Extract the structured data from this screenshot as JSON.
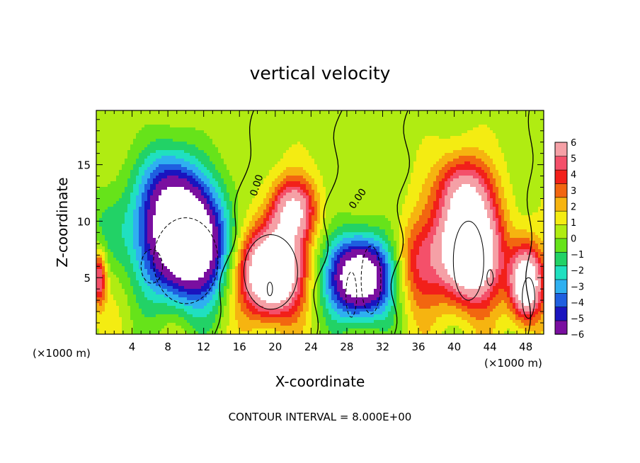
{
  "chart_data": {
    "type": "heatmap",
    "title": "vertical velocity",
    "xlabel": "X-coordinate",
    "ylabel": "Z-coordinate",
    "x_unit_label": "(×1000 m)",
    "x_unit_label_right": "(×1000 m)",
    "x_ticks": [
      "4",
      "8",
      "12",
      "16",
      "20",
      "24",
      "28",
      "32",
      "36",
      "40",
      "44",
      "48"
    ],
    "y_ticks": [
      "5",
      "10",
      "15"
    ],
    "xlim": [
      0,
      50
    ],
    "ylim": [
      0,
      19.8
    ],
    "colorbar_labels": [
      "6",
      "5",
      "4",
      "3",
      "2",
      "1",
      "0",
      "−1",
      "−2",
      "−3",
      "−4",
      "−5",
      "−6"
    ],
    "colorbar_range": [
      -6,
      6
    ],
    "colorbar_colors": [
      "#7a0fa0",
      "#1a14bf",
      "#1f5fe0",
      "#2fb0f0",
      "#20e0c0",
      "#22d266",
      "#66e31a",
      "#b0ec12",
      "#f4ec12",
      "#f6b410",
      "#f26610",
      "#f2201a",
      "#f4506a",
      "#f5a0a6"
    ],
    "contour_labels": [
      "0.00",
      "0.00"
    ],
    "footer": "CONTOUR INTERVAL = 8.000E+00",
    "features": [
      {
        "kind": "downdraft",
        "x": 10,
        "z": 8,
        "sx": 4.5,
        "sz": 5.0,
        "amp": -11
      },
      {
        "kind": "downdraft",
        "x": 8,
        "z": 13,
        "sx": 3.5,
        "sz": 4.0,
        "amp": -4
      },
      {
        "kind": "downdraft",
        "x": 1.5,
        "z": 9,
        "sx": 2.5,
        "sz": 4.0,
        "amp": -2
      },
      {
        "kind": "updraft",
        "x": 19.5,
        "z": 5.5,
        "sx": 3.2,
        "sz": 3.8,
        "amp": 11
      },
      {
        "kind": "updraft",
        "x": 22,
        "z": 11,
        "sx": 2.5,
        "sz": 2.8,
        "amp": 6
      },
      {
        "kind": "downdraft",
        "x": 29.5,
        "z": 5,
        "sx": 3.5,
        "sz": 3.6,
        "amp": -10
      },
      {
        "kind": "updraft",
        "x": 35.5,
        "z": 6,
        "sx": 2.5,
        "sz": 4.0,
        "amp": 3
      },
      {
        "kind": "updraft",
        "x": 41.5,
        "z": 7.5,
        "sx": 3.5,
        "sz": 4.5,
        "amp": 11
      },
      {
        "kind": "updraft",
        "x": 41,
        "z": 13,
        "sx": 3.0,
        "sz": 3.0,
        "amp": 4
      },
      {
        "kind": "updraft",
        "x": 48,
        "z": 4.5,
        "sx": 1.8,
        "sz": 3.2,
        "amp": 9
      },
      {
        "kind": "updraft",
        "x": 0.3,
        "z": 5,
        "sx": 0.8,
        "sz": 2.5,
        "amp": 5
      }
    ]
  }
}
